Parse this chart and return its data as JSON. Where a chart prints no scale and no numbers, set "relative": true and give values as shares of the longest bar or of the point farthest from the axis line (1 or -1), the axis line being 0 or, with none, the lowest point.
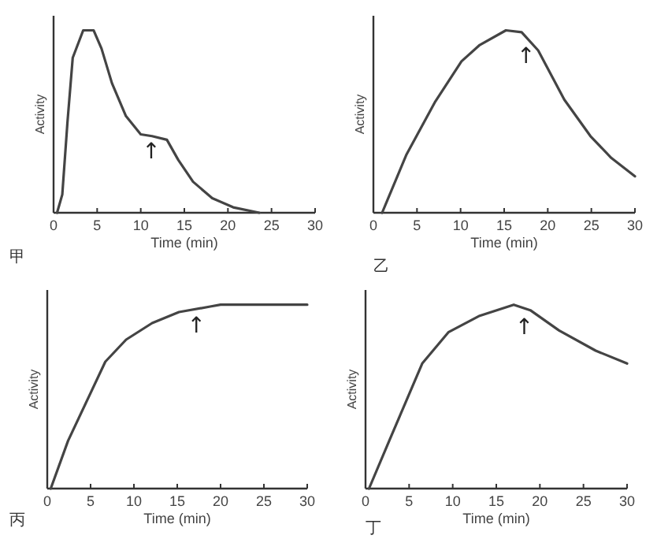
{
  "chart_data": [
    {
      "type": "line",
      "title": "甲",
      "xlabel": "Time (min)",
      "ylabel": "Activity",
      "relative": true,
      "xlim": [
        0,
        30
      ],
      "xticks": [
        0,
        5,
        10,
        15,
        20,
        25,
        30
      ],
      "tick_labels": "x",
      "grid": false,
      "marker": "none",
      "line_style": "solid",
      "series": [
        {
          "color": "#444444",
          "x": [
            0.4,
            1.0,
            1.6,
            2.2,
            3.4,
            4.6,
            5.5,
            6.7,
            8.3,
            10,
            11.3,
            13,
            14.3,
            16,
            18.2,
            20.6,
            23.6
          ],
          "values": [
            0,
            0.1,
            0.5,
            0.85,
            1,
            1,
            0.9,
            0.71,
            0.53,
            0.43,
            0.42,
            0.4,
            0.29,
            0.17,
            0.08,
            0.03,
            0
          ]
        }
      ],
      "annotations": [
        {
          "text": "↑",
          "x": 11.2,
          "y": 0.4
        }
      ]
    },
    {
      "type": "line",
      "title": "乙",
      "xlabel": "Time (min)",
      "ylabel": "Activity",
      "relative": true,
      "xlim": [
        0,
        30
      ],
      "xticks": [
        0,
        5,
        10,
        15,
        20,
        25,
        30
      ],
      "tick_labels": "x",
      "grid": false,
      "marker": "none",
      "line_style": "solid",
      "series": [
        {
          "color": "#444444",
          "x": [
            1,
            3.8,
            7.1,
            10.1,
            12.2,
            15.2,
            17,
            18.9,
            21.9,
            24.9,
            27.3,
            30
          ],
          "values": [
            0,
            0.32,
            0.61,
            0.83,
            0.92,
            1,
            0.99,
            0.89,
            0.62,
            0.42,
            0.3,
            0.2
          ]
        }
      ],
      "annotations": [
        {
          "text": "↑",
          "x": 17.5,
          "y": 0.92
        }
      ]
    },
    {
      "type": "line",
      "title": "丙",
      "xlabel": "Time (min)",
      "ylabel": "Activity",
      "relative": true,
      "xlim": [
        0,
        30
      ],
      "xticks": [
        0,
        5,
        10,
        15,
        20,
        25,
        30
      ],
      "tick_labels": "x",
      "grid": false,
      "marker": "none",
      "line_style": "solid",
      "series": [
        {
          "color": "#444444",
          "x": [
            0.4,
            2.4,
            4.8,
            6.7,
            9.1,
            12.1,
            15.2,
            18.8,
            20,
            30
          ],
          "values": [
            0,
            0.26,
            0.5,
            0.69,
            0.81,
            0.9,
            0.96,
            0.99,
            1,
            1
          ]
        }
      ],
      "annotations": [
        {
          "text": "↑",
          "x": 17.2,
          "y": 0.95
        }
      ]
    },
    {
      "type": "line",
      "title": "丁",
      "xlabel": "Time (min)",
      "ylabel": "Activity",
      "relative": true,
      "xlim": [
        0,
        30
      ],
      "xticks": [
        0,
        5,
        10,
        15,
        20,
        25,
        30
      ],
      "tick_labels": "x",
      "grid": false,
      "marker": "none",
      "line_style": "solid",
      "series": [
        {
          "color": "#444444",
          "x": [
            0.4,
            2.9,
            6.5,
            9.5,
            13.1,
            17,
            18.9,
            22.2,
            26.4,
            30
          ],
          "values": [
            0,
            0.28,
            0.68,
            0.85,
            0.94,
            1,
            0.97,
            0.86,
            0.75,
            0.68
          ]
        }
      ],
      "annotations": [
        {
          "text": "↑",
          "x": 18.2,
          "y": 0.94
        }
      ]
    }
  ]
}
